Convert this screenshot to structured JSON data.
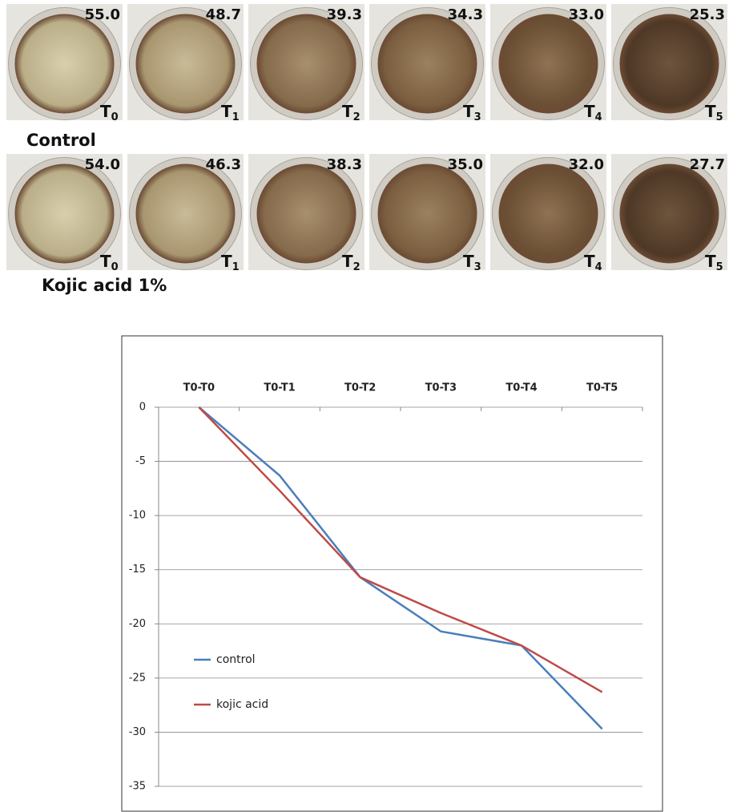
{
  "plates": {
    "rows": [
      {
        "label": "Control",
        "values": [
          "55.0",
          "48.7",
          "39.3",
          "34.3",
          "33.0",
          "25.3"
        ]
      },
      {
        "label": "Kojic acid 1%",
        "values": [
          "54.0",
          "46.3",
          "38.3",
          "35.0",
          "32.0",
          "27.7"
        ]
      }
    ],
    "time_letter": "T",
    "time_indices": [
      "0",
      "1",
      "2",
      "3",
      "4",
      "5"
    ]
  },
  "chart_data": {
    "type": "line",
    "categories": [
      "T0-T0",
      "T0-T1",
      "T0-T2",
      "T0-T3",
      "T0-T4",
      "T0-T5"
    ],
    "series": [
      {
        "name": "control",
        "color": "#4a7ebb",
        "values": [
          0,
          -6.3,
          -15.7,
          -20.7,
          -22,
          -29.7
        ]
      },
      {
        "name": "kojic acid",
        "color": "#be4b48",
        "values": [
          0,
          -7.7,
          -15.7,
          -19,
          -22,
          -26.3
        ]
      }
    ],
    "ylim": [
      -35,
      0
    ],
    "yticks": [
      0,
      -5,
      -10,
      -15,
      -20,
      -25,
      -30,
      -35
    ],
    "grid": true,
    "legend": "left"
  }
}
